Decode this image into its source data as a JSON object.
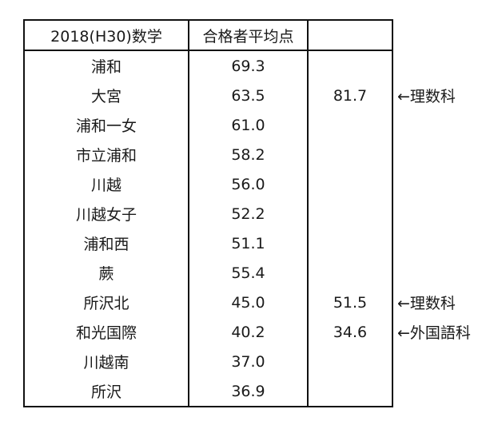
{
  "table": {
    "headers": [
      "2018(H30)数学",
      "合格者平均点",
      ""
    ],
    "rows": [
      {
        "school": "浦和",
        "average": "69.3",
        "extra": "",
        "note": ""
      },
      {
        "school": "大宮",
        "average": "63.5",
        "extra": "81.7",
        "note": "←理数科"
      },
      {
        "school": "浦和一女",
        "average": "61.0",
        "extra": "",
        "note": ""
      },
      {
        "school": "市立浦和",
        "average": "58.2",
        "extra": "",
        "note": ""
      },
      {
        "school": "川越",
        "average": "56.0",
        "extra": "",
        "note": ""
      },
      {
        "school": "川越女子",
        "average": "52.2",
        "extra": "",
        "note": ""
      },
      {
        "school": "浦和西",
        "average": "51.1",
        "extra": "",
        "note": ""
      },
      {
        "school": "蕨",
        "average": "55.4",
        "extra": "",
        "note": ""
      },
      {
        "school": "所沢北",
        "average": "45.0",
        "extra": "51.5",
        "note": "←理数科"
      },
      {
        "school": "和光国際",
        "average": "40.2",
        "extra": "34.6",
        "note": "←外国語科"
      },
      {
        "school": "川越南",
        "average": "37.0",
        "extra": "",
        "note": ""
      },
      {
        "school": "所沢",
        "average": "36.9",
        "extra": "",
        "note": ""
      }
    ]
  }
}
